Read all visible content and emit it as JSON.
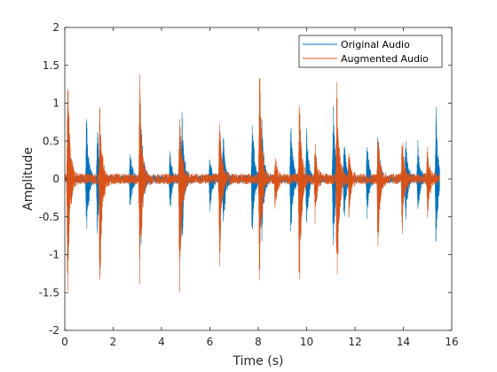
{
  "chart_data": {
    "type": "line",
    "title": "",
    "xlabel": "Time (s)",
    "ylabel": "Amplitude",
    "xlim": [
      0,
      16
    ],
    "ylim": [
      -2,
      2
    ],
    "xticks": [
      "0",
      "2",
      "4",
      "6",
      "8",
      "10",
      "12",
      "14",
      "16"
    ],
    "yticks": [
      "2",
      "1.5",
      "1",
      "0.5",
      "0",
      "-0.5",
      "-1",
      "-1.5",
      "-2"
    ],
    "grid": false,
    "legend_position": "top-right",
    "x_end": 15.5,
    "series": [
      {
        "name": "Original Audio",
        "color": "#0072BD",
        "noise_amplitude": 0.05,
        "bursts": [
          {
            "t": 0.9,
            "peak_pos": 0.95,
            "peak_neg": -0.97
          },
          {
            "t": 1.35,
            "peak_pos": 0.8,
            "peak_neg": -0.85
          },
          {
            "t": 2.7,
            "peak_pos": 0.45,
            "peak_neg": -0.5
          },
          {
            "t": 3.15,
            "peak_pos": 1.0,
            "peak_neg": -1.0
          },
          {
            "t": 4.35,
            "peak_pos": 0.4,
            "peak_neg": -0.45
          },
          {
            "t": 4.85,
            "peak_pos": 0.95,
            "peak_neg": -0.95
          },
          {
            "t": 6.0,
            "peak_pos": 0.3,
            "peak_neg": -0.5
          },
          {
            "t": 6.55,
            "peak_pos": 0.65,
            "peak_neg": -0.7
          },
          {
            "t": 7.75,
            "peak_pos": 0.9,
            "peak_neg": -0.85
          },
          {
            "t": 8.15,
            "peak_pos": 0.85,
            "peak_neg": -0.85
          },
          {
            "t": 9.35,
            "peak_pos": 0.95,
            "peak_neg": -0.95
          },
          {
            "t": 10.0,
            "peak_pos": 0.7,
            "peak_neg": -0.7
          },
          {
            "t": 11.1,
            "peak_pos": 1.0,
            "peak_neg": -1.0
          },
          {
            "t": 11.55,
            "peak_pos": 0.6,
            "peak_neg": -0.6
          },
          {
            "t": 12.5,
            "peak_pos": 0.5,
            "peak_neg": -0.55
          },
          {
            "t": 12.95,
            "peak_pos": 0.7,
            "peak_neg": -0.7
          },
          {
            "t": 14.1,
            "peak_pos": 0.6,
            "peak_neg": -0.6
          },
          {
            "t": 14.6,
            "peak_pos": 0.5,
            "peak_neg": -0.5
          },
          {
            "t": 15.35,
            "peak_pos": 1.0,
            "peak_neg": -1.0
          }
        ]
      },
      {
        "name": "Augmented Audio",
        "color": "#D95319",
        "noise_amplitude": 0.07,
        "bursts": [
          {
            "t": 0.12,
            "peak_pos": 1.65,
            "peak_neg": -1.65
          },
          {
            "t": 1.45,
            "peak_pos": 1.05,
            "peak_neg": -1.65
          },
          {
            "t": 3.1,
            "peak_pos": 1.4,
            "peak_neg": -1.65
          },
          {
            "t": 4.75,
            "peak_pos": 1.0,
            "peak_neg": -1.65
          },
          {
            "t": 6.4,
            "peak_pos": 0.95,
            "peak_neg": -1.2
          },
          {
            "t": 8.05,
            "peak_pos": 1.65,
            "peak_neg": -1.65
          },
          {
            "t": 8.7,
            "peak_pos": 0.35,
            "peak_neg": -0.45
          },
          {
            "t": 9.7,
            "peak_pos": 1.2,
            "peak_neg": -1.6
          },
          {
            "t": 10.35,
            "peak_pos": 0.5,
            "peak_neg": -0.55
          },
          {
            "t": 11.25,
            "peak_pos": 1.5,
            "peak_neg": -1.65
          },
          {
            "t": 11.75,
            "peak_pos": 0.45,
            "peak_neg": -0.5
          },
          {
            "t": 12.95,
            "peak_pos": 0.65,
            "peak_neg": -1.0
          },
          {
            "t": 13.95,
            "peak_pos": 0.65,
            "peak_neg": -0.8
          },
          {
            "t": 15.0,
            "peak_pos": 0.5,
            "peak_neg": -0.55
          }
        ]
      }
    ]
  }
}
